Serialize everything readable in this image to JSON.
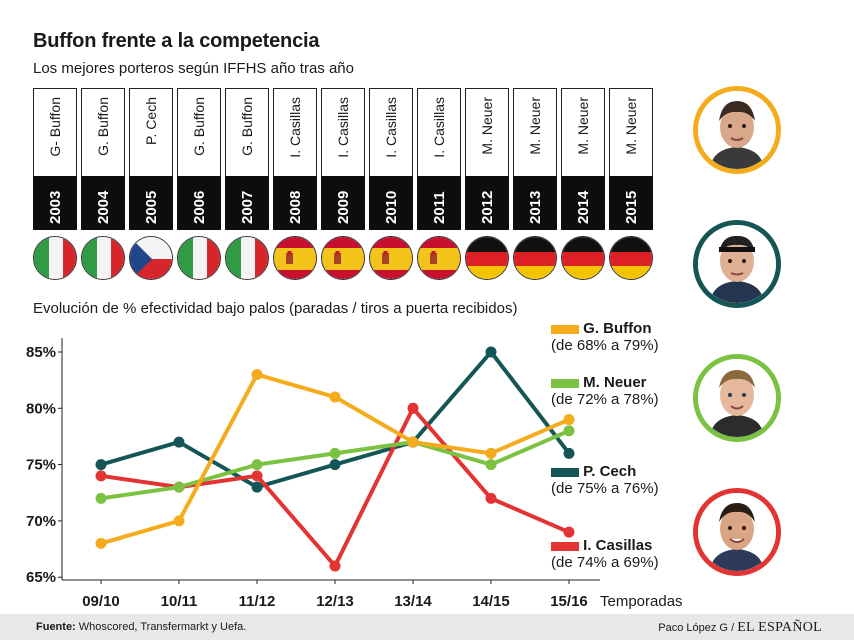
{
  "title": "Buffon frente a la competencia",
  "subtitle": "Los mejores porteros según IFFHS año tras año",
  "timeline": [
    {
      "year": "2003",
      "name": "G- Buffon",
      "country": "italy"
    },
    {
      "year": "2004",
      "name": "G. Buffon",
      "country": "italy"
    },
    {
      "year": "2005",
      "name": "P. Cech",
      "country": "czech"
    },
    {
      "year": "2006",
      "name": "G. Buffon",
      "country": "italy"
    },
    {
      "year": "2007",
      "name": "G. Buffon",
      "country": "italy"
    },
    {
      "year": "2008",
      "name": "I. Casillas",
      "country": "spain"
    },
    {
      "year": "2009",
      "name": "I. Casillas",
      "country": "spain"
    },
    {
      "year": "2010",
      "name": "I. Casillas",
      "country": "spain"
    },
    {
      "year": "2011",
      "name": "I. Casillas",
      "country": "spain"
    },
    {
      "year": "2012",
      "name": "M. Neuer",
      "country": "germany"
    },
    {
      "year": "2013",
      "name": "M. Neuer",
      "country": "germany"
    },
    {
      "year": "2014",
      "name": "M. Neuer",
      "country": "germany"
    },
    {
      "year": "2015",
      "name": "M. Neuer",
      "country": "germany"
    }
  ],
  "chart_data": {
    "type": "line",
    "title": "Evolución de % efectividad bajo palos (paradas / tiros a puerta recibidos)",
    "xlabel": "Temporadas",
    "ylabel": "",
    "categories": [
      "09/10",
      "10/11",
      "11/12",
      "12/13",
      "13/14",
      "14/15",
      "15/16"
    ],
    "yticks": [
      "65%",
      "70%",
      "75%",
      "80%",
      "85%"
    ],
    "ylim": [
      65,
      86
    ],
    "series": [
      {
        "name": "G. Buffon",
        "range": "(de 68% a 79%)",
        "color": "#f5ac1c",
        "values": [
          68,
          70,
          83,
          81,
          77,
          76,
          79
        ]
      },
      {
        "name": "M. Neuer",
        "range": "(de 72% a 78%)",
        "color": "#7cc242",
        "values": [
          72,
          73,
          75,
          76,
          77,
          75,
          78
        ]
      },
      {
        "name": "P. Cech",
        "range": "(de 75% a 76%)",
        "color": "#145656",
        "values": [
          75,
          77,
          73,
          75,
          77,
          85,
          76
        ]
      },
      {
        "name": "I. Casillas",
        "range": "(de 74% a 69%)",
        "color": "#e33333",
        "values": [
          74,
          73,
          74,
          66,
          80,
          72,
          69
        ]
      }
    ]
  },
  "footer": {
    "source_label": "Fuente:",
    "source_text": "Whoscored, Transfermarkt y Uefa.",
    "author": "Paco López G",
    "separator": "/",
    "brand": "EL ESPAÑOL"
  }
}
